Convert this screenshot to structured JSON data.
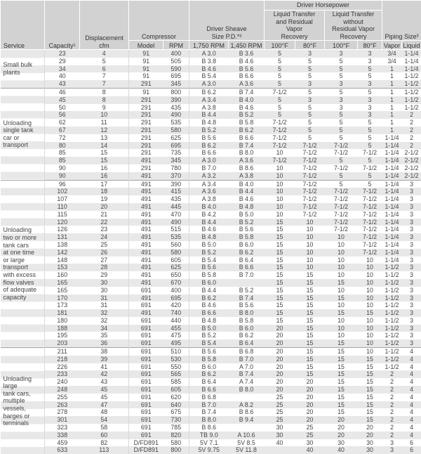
{
  "header": {
    "service": "Service",
    "capacity": "Capacity¹",
    "displacement_top": "Displacement",
    "displacement_bottom": "cfm",
    "compressor": "Compressor",
    "model": "Model",
    "rpm": "RPM",
    "sheave_top": "Driver Sheave",
    "sheave_bottom": "Size P.D.*²",
    "rpm_1750": "1,750 RPM",
    "rpm_1450": "1,450 RPM",
    "driver_horsepower": "Driver Horsepower",
    "hp_with_recovery": "Liquid Transfer\nand Residual\nVapor\nRecovery",
    "hp_without_recovery": "Liquid Transfer\nwithout\nResidual Vapor\nRecovery",
    "temp_100f_a": "100°F",
    "temp_80f_a": "80°F",
    "temp_100f_b": "100°F",
    "temp_80f_b": "80°F",
    "piping_size": "Piping Size³",
    "vapor": "Vapor",
    "liquid": "Liquid"
  },
  "column_keys": [
    "capacity",
    "displacement-cfm",
    "model",
    "rpm",
    "sheave-1750-rpm",
    "sheave-1450-rpm",
    "hp-with-recovery-100f",
    "hp-with-recovery-80f",
    "hp-without-recovery-100f",
    "hp-without-recovery-80f",
    "piping-vapor",
    "piping-liquid"
  ],
  "colors": {
    "header_bg": "#d2d2d2",
    "row_stripe": "#e8e8e8",
    "group_divider": "#a3a3a3",
    "text": "#454545"
  },
  "groups": [
    {
      "service_lines": [
        "Small bulk",
        "plants"
      ],
      "rows": [
        [
          "23",
          "4",
          "91",
          "400",
          "A 3.0",
          "B 3.6",
          "5",
          "3",
          "3",
          "3",
          "3/4",
          "1-1/4"
        ],
        [
          "29",
          "5",
          "91",
          "505",
          "B 3.8",
          "B 4.6",
          "5",
          "5",
          "5",
          "3",
          "3/4",
          "1-1/4"
        ],
        [
          "34",
          "6",
          "91",
          "590",
          "B 4.6",
          "B 5.6",
          "5",
          "5",
          "5",
          "5",
          "1",
          "1-1/4"
        ],
        [
          "40",
          "7",
          "91",
          "695",
          "B 5.4",
          "B 6.6",
          "5",
          "5",
          "5",
          "5",
          "1",
          "1-1/2"
        ],
        [
          "43",
          "7",
          "291",
          "345",
          "A 3.0",
          "A 3.6",
          "5",
          "3",
          "3",
          "3",
          "1",
          "1-1/2"
        ]
      ]
    },
    {
      "service_lines": [
        "Unloading",
        "single tank",
        "car or",
        "transport"
      ],
      "rows": [
        [
          "46",
          "8",
          "91",
          "800",
          "B 6.2",
          "B 7.4",
          "7-1/2",
          "5",
          "5",
          "5",
          "1",
          "1-1/2"
        ],
        [
          "45",
          "8",
          "291",
          "390",
          "A 3.4",
          "B 4.0",
          "5",
          "3",
          "3",
          "3",
          "1",
          "1-1/2"
        ],
        [
          "50",
          "9",
          "291",
          "435",
          "A 3.8",
          "B 4.6",
          "5",
          "5",
          "3",
          "3",
          "1",
          "1-1/2"
        ],
        [
          "56",
          "10",
          "291",
          "490",
          "B 4.4",
          "B 5.2",
          "5",
          "5",
          "5",
          "3",
          "1",
          "2"
        ],
        [
          "62",
          "11",
          "291",
          "535",
          "B 4.8",
          "B 5.8",
          "7-1/2",
          "5",
          "5",
          "5",
          "1",
          "2"
        ],
        [
          "67",
          "12",
          "291",
          "580",
          "B 5.2",
          "B 6.2",
          "7-1/2",
          "5",
          "5",
          "5",
          "1",
          "2"
        ],
        [
          "72",
          "13",
          "291",
          "625",
          "B 5.6",
          "B 6.6",
          "7-1/2",
          "5",
          "5",
          "5",
          "1-1/4",
          "2"
        ],
        [
          "80",
          "14",
          "291",
          "695",
          "B 6.2",
          "B 7.4",
          "7-1/2",
          "7-1/2",
          "7-1/2",
          "5",
          "1-1/4",
          "2"
        ],
        [
          "85",
          "15",
          "291",
          "735",
          "B 6.6",
          "B 8.0",
          "10",
          "7-1/2",
          "7-1/2",
          "7-1/2",
          "1-1/4",
          "2-1/2"
        ],
        [
          "85",
          "15",
          "491",
          "345",
          "A 3.0",
          "A 3.6",
          "7-1/2",
          "7-1/2",
          "5",
          "5",
          "1-1/4",
          "2-1/2"
        ],
        [
          "90",
          "16",
          "291",
          "780",
          "B 7.0",
          "B 8.6",
          "10",
          "7-1/2",
          "7-1/2",
          "7-1/2",
          "1-1/4",
          "2-1/2"
        ],
        [
          "90",
          "16",
          "491",
          "370",
          "A 3.2",
          "A 3.8",
          "10",
          "7-1/2",
          "5",
          "5",
          "1-1/4",
          "2-1/2"
        ]
      ]
    },
    {
      "service_lines": [
        "Unloading",
        "two or more",
        "tank cars",
        "at one time",
        "or large",
        "transport",
        "with excess",
        "flow valves",
        "of adequate",
        "capacity"
      ],
      "rows": [
        [
          "96",
          "17",
          "491",
          "390",
          "A 3.4",
          "B 4.0",
          "10",
          "7-1/2",
          "5",
          "5",
          "1-1/4",
          "3"
        ],
        [
          "102",
          "18",
          "491",
          "415",
          "A 3.6",
          "B 4.4",
          "10",
          "7-1/2",
          "7-1/2",
          "7-1/2",
          "1-1/4",
          "3"
        ],
        [
          "107",
          "19",
          "491",
          "435",
          "A 3.8",
          "B 4.6",
          "10",
          "7-1/2",
          "7-1/2",
          "7-1/2",
          "1-1/4",
          "3"
        ],
        [
          "110",
          "20",
          "491",
          "445",
          "B 4.0",
          "B 4.8",
          "10",
          "7-1/2",
          "7-1/2",
          "7-1/2",
          "1-1/4",
          "3"
        ],
        [
          "115",
          "21",
          "491",
          "470",
          "B 4.2",
          "B 5.0",
          "10",
          "7-1/2",
          "7-1/2",
          "7-1/2",
          "1-1/4",
          "3"
        ],
        [
          "120",
          "22",
          "491",
          "490",
          "B 4.4",
          "B 5.2",
          "15",
          "10",
          "7-1/2",
          "7-1/2",
          "1-1/4",
          "3"
        ],
        [
          "126",
          "23",
          "491",
          "515",
          "B 4.6",
          "B 5.6",
          "15",
          "10",
          "7-1/2",
          "7-1/2",
          "1-1/4",
          "3"
        ],
        [
          "131",
          "24",
          "491",
          "535",
          "B 4.8",
          "B 5.8",
          "15",
          "10",
          "10",
          "7-1/2",
          "1-1/4",
          "3"
        ],
        [
          "138",
          "25",
          "491",
          "560",
          "B 5.0",
          "B 6.0",
          "15",
          "10",
          "10",
          "7-1/2",
          "1-1/4",
          "3"
        ],
        [
          "142",
          "26",
          "491",
          "580",
          "B 5.2",
          "B 6.2",
          "15",
          "10",
          "10",
          "7-1/2",
          "1-1/4",
          "3"
        ],
        [
          "148",
          "27",
          "491",
          "605",
          "B 5.4",
          "B 6.4",
          "15",
          "10",
          "10",
          "10",
          "1-1/4",
          "3"
        ],
        [
          "153",
          "28",
          "491",
          "625",
          "B 5.6",
          "B 6.6",
          "15",
          "10",
          "10",
          "10",
          "1-1/2",
          "3"
        ],
        [
          "160",
          "29",
          "491",
          "650",
          "B 5.8",
          "B 7.0",
          "15",
          "15",
          "10",
          "10",
          "1-1/2",
          "3"
        ],
        [
          "165",
          "30",
          "491",
          "670",
          "B 6.0",
          "",
          "15",
          "15",
          "15",
          "10",
          "1-1/2",
          "3"
        ],
        [
          "165",
          "30",
          "691",
          "400",
          "B 4.4",
          "B 5.2",
          "15",
          "15",
          "10",
          "10",
          "1-1/2",
          "3"
        ],
        [
          "170",
          "31",
          "491",
          "695",
          "B 6.2",
          "B 7.4",
          "15",
          "15",
          "15",
          "10",
          "1-1/2",
          "3"
        ],
        [
          "173",
          "31",
          "691",
          "420",
          "B 4.6",
          "B 5.6",
          "15",
          "15",
          "10",
          "10",
          "1-1/2",
          "3"
        ],
        [
          "181",
          "32",
          "491",
          "740",
          "B 6.6",
          "B 8.0",
          "15",
          "15",
          "15",
          "15",
          "1-1/2",
          "3"
        ],
        [
          "180",
          "32",
          "691",
          "440",
          "B 4.8",
          "B 5.8",
          "15",
          "15",
          "10",
          "10",
          "1-1/2",
          "3"
        ],
        [
          "188",
          "34",
          "691",
          "455",
          "B 5.0",
          "B 6.0",
          "20",
          "15",
          "10",
          "10",
          "1-1/2",
          "3"
        ],
        [
          "195",
          "35",
          "691",
          "475",
          "B 5.2",
          "B 6.2",
          "20",
          "15",
          "10",
          "10",
          "1-1/2",
          "3"
        ],
        [
          "203",
          "36",
          "691",
          "495",
          "B 5.4",
          "B 6.4",
          "20",
          "15",
          "15",
          "10",
          "1-1/2",
          "3"
        ]
      ]
    },
    {
      "service_lines": [
        "Unloading",
        "large",
        "tank cars,",
        "multiple",
        "vessels,",
        "barges or",
        "terminals"
      ],
      "rows": [
        [
          "211",
          "38",
          "691",
          "510",
          "B 5.6",
          "B 6.8",
          "20",
          "15",
          "15",
          "10",
          "1-1/2",
          "4"
        ],
        [
          "218",
          "39",
          "691",
          "530",
          "B 5.8",
          "B 7.0",
          "20",
          "15",
          "15",
          "15",
          "1-1/2",
          "4"
        ],
        [
          "226",
          "41",
          "691",
          "550",
          "B 6.0",
          "A 7.0",
          "20",
          "15",
          "15",
          "15",
          "1-1/2",
          "4"
        ],
        [
          "233",
          "42",
          "691",
          "565",
          "B 6.2",
          "B 7.4",
          "20",
          "15",
          "15",
          "15",
          "2",
          "4"
        ],
        [
          "240",
          "43",
          "691",
          "585",
          "B 6.4",
          "A 7.4",
          "20",
          "20",
          "15",
          "15",
          "2",
          "4"
        ],
        [
          "248",
          "45",
          "691",
          "605",
          "B 6.6",
          "B 8.0",
          "20",
          "20",
          "15",
          "15",
          "2",
          "4"
        ],
        [
          "255",
          "45",
          "691",
          "620",
          "B 6.8",
          "",
          "25",
          "20",
          "15",
          "15",
          "2",
          "4"
        ],
        [
          "263",
          "47",
          "691",
          "640",
          "B 7.0",
          "A 8.2",
          "25",
          "20",
          "15",
          "15",
          "2",
          "4"
        ],
        [
          "278",
          "48",
          "691",
          "675",
          "B 7.4",
          "B 8.6",
          "25",
          "20",
          "15",
          "15",
          "2",
          "4"
        ],
        [
          "301",
          "54",
          "691",
          "730",
          "B 8.0",
          "B 9.4",
          "25",
          "20",
          "20",
          "15",
          "2",
          "4"
        ],
        [
          "323",
          "58",
          "691",
          "785",
          "B 8.6",
          "",
          "30",
          "25",
          "20",
          "20",
          "2",
          "4"
        ],
        [
          "338",
          "60",
          "691",
          "820",
          "TB 9.0",
          "A 10.6",
          "30",
          "25",
          "20",
          "20",
          "2",
          "4"
        ],
        [
          "459",
          "82",
          "D/FD891",
          "580",
          "5V 7.1",
          "5V 8.5",
          "40",
          "30",
          "30",
          "30",
          "3",
          "6"
        ],
        [
          "633",
          "113",
          "D/FD891",
          "800",
          "5V 9.75",
          "5V 11.8",
          "",
          "40",
          "40",
          "30",
          "3",
          "6"
        ]
      ]
    }
  ]
}
